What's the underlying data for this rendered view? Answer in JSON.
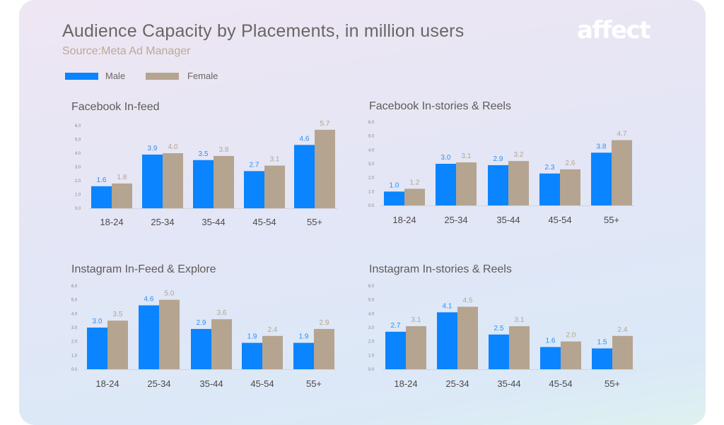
{
  "header": {
    "title": "Audience Capacity by Placements, in million users",
    "subtitle": "Source:Meta Ad Manager",
    "logo": "affect"
  },
  "legend": [
    {
      "name": "Male",
      "color": "#0a84ff"
    },
    {
      "name": "Female",
      "color": "#b5a48f"
    }
  ],
  "chart_data": [
    {
      "type": "bar",
      "title": "Facebook In-feed",
      "categories": [
        "18-24",
        "25-34",
        "35-44",
        "45-54",
        "55+"
      ],
      "yticks": [
        "0.0",
        "1.0",
        "2.0",
        "3.0",
        "4.0",
        "5.0",
        "6.0"
      ],
      "ylim": [
        0,
        6
      ],
      "series": [
        {
          "name": "Male",
          "values": [
            1.6,
            3.9,
            3.5,
            2.7,
            4.6
          ]
        },
        {
          "name": "Female",
          "values": [
            1.8,
            4.0,
            3.8,
            3.1,
            5.7
          ]
        }
      ],
      "labels": [
        [
          "1.6",
          "3.9",
          "3.5",
          "2.7",
          "4.6"
        ],
        [
          "1.8",
          "4.0",
          "3.8",
          "3.1",
          "5.7"
        ]
      ]
    },
    {
      "type": "bar",
      "title": "Facebook In-stories & Reels",
      "categories": [
        "18-24",
        "25-34",
        "35-44",
        "45-54",
        "55+"
      ],
      "yticks": [
        "0.0",
        "1.0",
        "2.0",
        "3.0",
        "4.0",
        "5.0",
        "6.0"
      ],
      "ylim": [
        0,
        6
      ],
      "series": [
        {
          "name": "Male",
          "values": [
            1.0,
            3.0,
            2.9,
            2.3,
            3.8
          ]
        },
        {
          "name": "Female",
          "values": [
            1.2,
            3.1,
            3.2,
            2.6,
            4.7
          ]
        }
      ],
      "labels": [
        [
          "1.0",
          "3.0",
          "2.9",
          "2.3",
          "3.8"
        ],
        [
          "1.2",
          "3.1",
          "3.2",
          "2.6",
          "4.7"
        ]
      ]
    },
    {
      "type": "bar",
      "title": "Instagram In-Feed & Explore",
      "categories": [
        "18-24",
        "25-34",
        "35-44",
        "45-54",
        "55+"
      ],
      "yticks": [
        "0.0",
        "1.0",
        "2.0",
        "3.0",
        "4.0",
        "5.0",
        "6.0"
      ],
      "ylim": [
        0,
        6
      ],
      "series": [
        {
          "name": "Male",
          "values": [
            3.0,
            4.6,
            2.9,
            1.9,
            1.9
          ]
        },
        {
          "name": "Female",
          "values": [
            3.5,
            5.0,
            3.6,
            2.4,
            2.9
          ]
        }
      ],
      "labels": [
        [
          "3.0",
          "4.6",
          "2.9",
          "1.9",
          "1.9"
        ],
        [
          "3.5",
          "5.0",
          "3.6",
          "2.4",
          "2.9"
        ]
      ]
    },
    {
      "type": "bar",
      "title": "Instagram In-stories & Reels",
      "categories": [
        "18-24",
        "25-34",
        "35-44",
        "45-54",
        "55+"
      ],
      "yticks": [
        "0.0",
        "1.0",
        "2.0",
        "3.0",
        "4.0",
        "5.0",
        "6.0"
      ],
      "ylim": [
        0,
        6
      ],
      "series": [
        {
          "name": "Male",
          "values": [
            2.7,
            4.1,
            2.5,
            1.6,
            1.5
          ]
        },
        {
          "name": "Female",
          "values": [
            3.1,
            4.5,
            3.1,
            2.0,
            2.4
          ]
        }
      ],
      "labels": [
        [
          "2.7",
          "4.1",
          "2.5",
          "1.6",
          "1.5"
        ],
        [
          "3.1",
          "4.5",
          "3.1",
          "2.0",
          "2.4"
        ]
      ]
    }
  ]
}
